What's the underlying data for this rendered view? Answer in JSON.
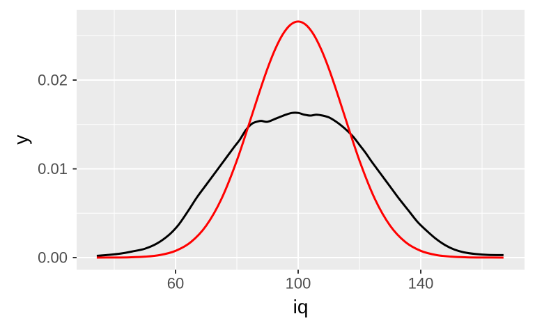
{
  "chart_data": {
    "type": "line",
    "title": "",
    "xlabel": "iq",
    "ylabel": "y",
    "xlim": [
      27.73,
      173.86
    ],
    "ylim": [
      -0.001373,
      0.027922
    ],
    "grid": "major+minor",
    "legend": "none",
    "panel_background": "#EBEBEB",
    "grid_color": "#FFFFFF",
    "tick_color": "#333333",
    "tick_label_color": "#4D4D4D",
    "axis_title_color": "#000000",
    "x_ticks": {
      "values": [
        60,
        100,
        140
      ],
      "labels": [
        "60",
        "100",
        "140"
      ]
    },
    "x_minor_ticks": [
      40,
      80,
      120,
      160
    ],
    "y_ticks": {
      "values": [
        0,
        0.01,
        0.02
      ],
      "labels": [
        "0.00",
        "0.01",
        "0.02"
      ]
    },
    "y_minor_ticks": [
      0.005,
      0.015,
      0.025
    ],
    "series": [
      {
        "name": "iq-density-black",
        "color": "#000000",
        "stroke_width": 3,
        "points": [
          [
            34.3,
            0.0002
          ],
          [
            38,
            0.0003
          ],
          [
            42,
            0.00045
          ],
          [
            46,
            0.0007
          ],
          [
            50,
            0.001
          ],
          [
            54,
            0.0016
          ],
          [
            58,
            0.0026
          ],
          [
            61,
            0.0037
          ],
          [
            64,
            0.0052
          ],
          [
            67,
            0.0068
          ],
          [
            70,
            0.0082
          ],
          [
            73,
            0.0096
          ],
          [
            76,
            0.011
          ],
          [
            79,
            0.0124
          ],
          [
            81,
            0.0133
          ],
          [
            83,
            0.0144
          ],
          [
            85,
            0.0151
          ],
          [
            87,
            0.01535
          ],
          [
            88,
            0.0154
          ],
          [
            90,
            0.0153
          ],
          [
            93,
            0.0157
          ],
          [
            96,
            0.0161
          ],
          [
            98,
            0.0163
          ],
          [
            100,
            0.0163
          ],
          [
            102,
            0.0161
          ],
          [
            104,
            0.016
          ],
          [
            106,
            0.0161
          ],
          [
            108,
            0.016
          ],
          [
            110,
            0.0158
          ],
          [
            112,
            0.0154
          ],
          [
            114,
            0.0149
          ],
          [
            116,
            0.0143
          ],
          [
            118,
            0.0136
          ],
          [
            120,
            0.0127
          ],
          [
            122,
            0.0118
          ],
          [
            124,
            0.0108
          ],
          [
            127,
            0.0094
          ],
          [
            130,
            0.008
          ],
          [
            133,
            0.0066
          ],
          [
            136,
            0.0053
          ],
          [
            139,
            0.004
          ],
          [
            142,
            0.003
          ],
          [
            145,
            0.0021
          ],
          [
            148,
            0.0014
          ],
          [
            151,
            0.0009
          ],
          [
            154,
            0.0006
          ],
          [
            158,
            0.0004
          ],
          [
            162,
            0.0003
          ],
          [
            167,
            0.00028
          ]
        ]
      },
      {
        "name": "normal-100-15-red",
        "color": "#FF0000",
        "stroke_width": 3,
        "points": [
          [
            34.3,
            2e-06
          ],
          [
            40,
            9e-06
          ],
          [
            45,
            3.2e-05
          ],
          [
            50,
            0.000103
          ],
          [
            55,
            0.000295
          ],
          [
            60,
            0.00076
          ],
          [
            65,
            0.00175
          ],
          [
            70,
            0.0036
          ],
          [
            75,
            0.00663
          ],
          [
            80,
            0.01093
          ],
          [
            85,
            0.01613
          ],
          [
            87.5,
            0.01879
          ],
          [
            90,
            0.0213
          ],
          [
            92.5,
            0.02347
          ],
          [
            95,
            0.02516
          ],
          [
            97.5,
            0.02623
          ],
          [
            100,
            0.0266
          ],
          [
            102.5,
            0.02623
          ],
          [
            105,
            0.02516
          ],
          [
            107.5,
            0.02347
          ],
          [
            110,
            0.0213
          ],
          [
            112.5,
            0.01879
          ],
          [
            115,
            0.01613
          ],
          [
            120,
            0.01093
          ],
          [
            125,
            0.00663
          ],
          [
            130,
            0.0036
          ],
          [
            135,
            0.00175
          ],
          [
            140,
            0.00076
          ],
          [
            145,
            0.000295
          ],
          [
            150,
            0.000103
          ],
          [
            155,
            3.2e-05
          ],
          [
            160,
            9e-06
          ],
          [
            167,
            2e-06
          ]
        ]
      }
    ]
  }
}
